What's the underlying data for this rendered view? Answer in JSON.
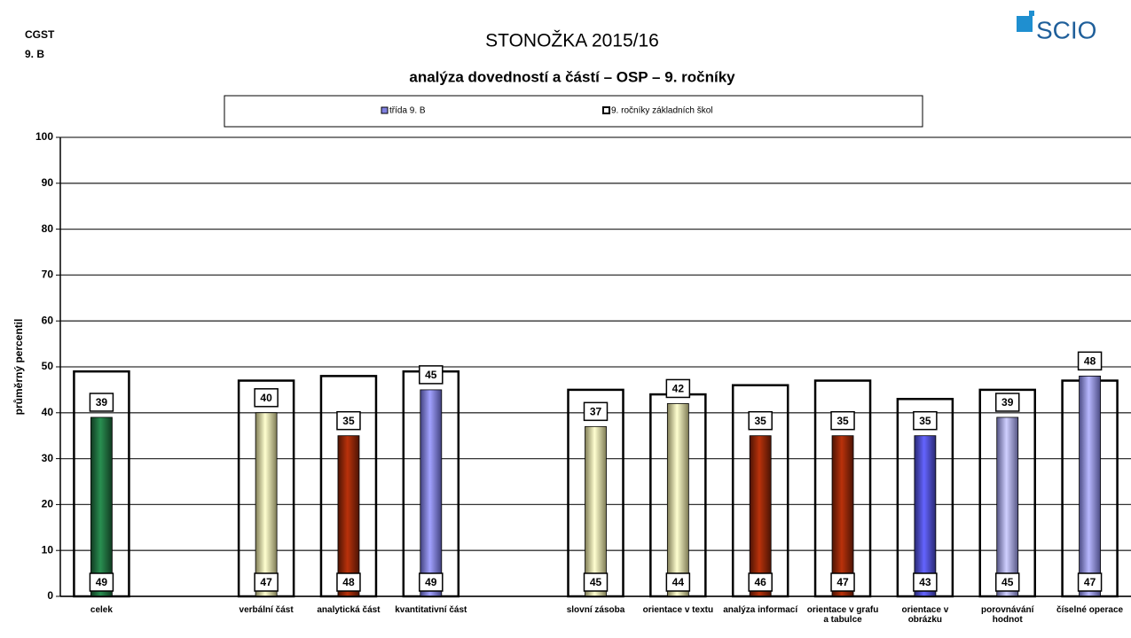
{
  "header": {
    "school": "CGST",
    "class": "9. B",
    "logo": "SCIO"
  },
  "chart_data": {
    "type": "bar",
    "title": "STONOŽKA 2015/16",
    "subtitle": "analýza dovedností a částí – OSP – 9. ročníky",
    "y_label": "průměrný percentil",
    "categories": [
      "celek",
      null,
      "verbální část",
      "analytická část",
      "kvantitativní část",
      null,
      "slovní zásoba",
      "orientace v textu",
      "analýza informací",
      "orientace v grafu a tabulce",
      "orientace v obrázku",
      "porovnávání hodnot",
      "číselné operace"
    ],
    "series": [
      {
        "name": "třída 9. B",
        "color": "#8080e0",
        "colors": [
          "#1e6a3c",
          null,
          "#e6e29a",
          "#8a2508",
          "#7878e6",
          null,
          "#e6e29a",
          "#e6e29a",
          "#8a2508",
          "#8a2508",
          "#4a4ad0",
          "#9a9af0",
          "#8888ee"
        ],
        "values": [
          39,
          null,
          40,
          35,
          45,
          null,
          37,
          42,
          35,
          35,
          35,
          39,
          48
        ]
      },
      {
        "name": "9. ročníky základních škol",
        "color": "#ffffff",
        "values": [
          49,
          null,
          47,
          48,
          49,
          null,
          45,
          44,
          46,
          47,
          43,
          45,
          47
        ]
      }
    ],
    "ylim": [
      0,
      100
    ],
    "yticks": [
      0,
      10,
      20,
      30,
      40,
      50,
      60,
      70,
      80,
      90,
      100
    ],
    "grid": true
  }
}
